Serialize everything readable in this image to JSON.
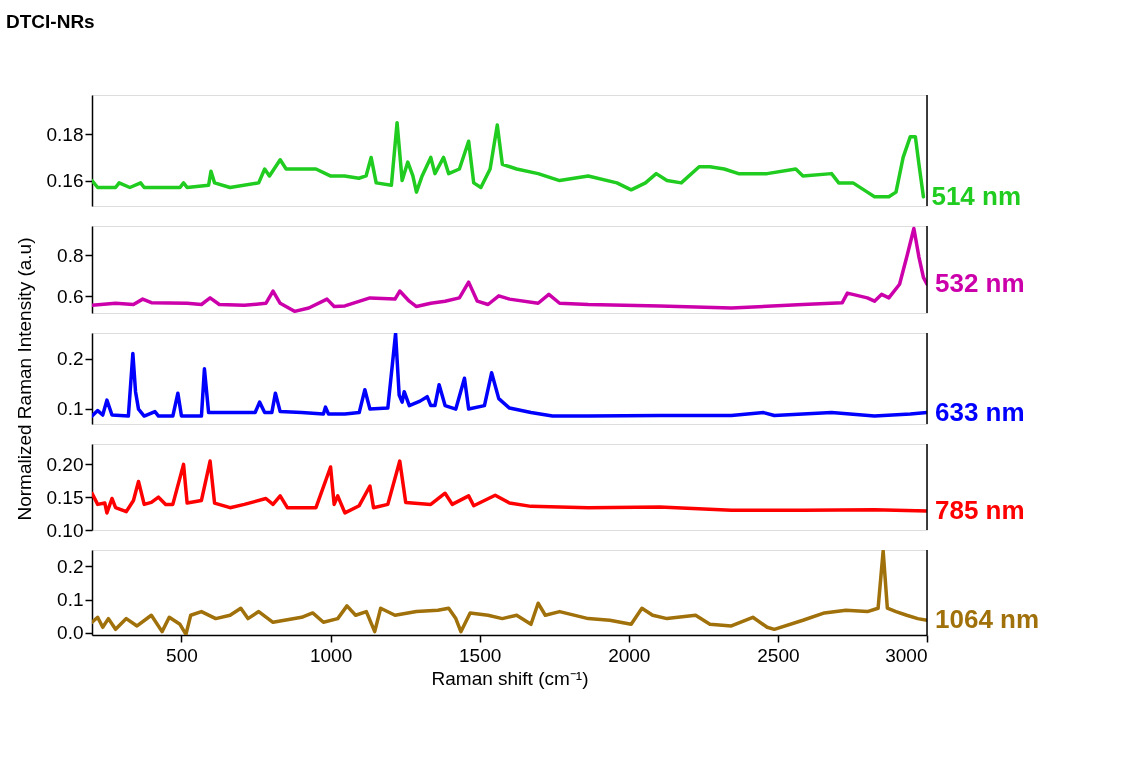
{
  "chart_data": [
    {
      "type": "line",
      "title": "DTCI-NRs",
      "xlim": [
        200,
        3000
      ],
      "ylim": [
        0.149,
        0.197
      ],
      "yticks": [
        0.16,
        0.18
      ],
      "tick_labels": "y",
      "grid": false,
      "series": [
        {
          "name": "514 nm",
          "color": "#1fcc1f",
          "x": [
            200,
            219,
            279,
            291,
            327,
            363,
            375,
            495,
            507,
            519,
            591,
            599,
            611,
            663,
            759,
            779,
            795,
            831,
            851,
            951,
            999,
            1047,
            1095,
            1119,
            1136,
            1153,
            1204,
            1223,
            1240,
            1259,
            1276,
            1288,
            1307,
            1336,
            1350,
            1379,
            1396,
            1432,
            1463,
            1480,
            1504,
            1535,
            1559,
            1576,
            1624,
            1696,
            1768,
            1864,
            1960,
            2008,
            2056,
            2092,
            2128,
            2176,
            2236,
            2272,
            2320,
            2368,
            2464,
            2560,
            2584,
            2680,
            2704,
            2752,
            2800,
            2824,
            2848,
            2872,
            2896,
            2920,
            2944,
            2961,
            2973,
            2988
          ],
          "values": [
            0.16,
            0.157,
            0.157,
            0.159,
            0.157,
            0.159,
            0.157,
            0.157,
            0.159,
            0.157,
            0.158,
            0.164,
            0.159,
            0.157,
            0.159,
            0.165,
            0.162,
            0.169,
            0.165,
            0.165,
            0.162,
            0.162,
            0.161,
            0.162,
            0.17,
            0.159,
            0.158,
            0.185,
            0.16,
            0.168,
            0.162,
            0.155,
            0.162,
            0.17,
            0.163,
            0.17,
            0.163,
            0.165,
            0.177,
            0.159,
            0.157,
            0.165,
            0.184,
            0.167,
            0.165,
            0.163,
            0.16,
            0.162,
            0.159,
            0.156,
            0.159,
            0.163,
            0.16,
            0.159,
            0.166,
            0.166,
            0.165,
            0.163,
            0.163,
            0.165,
            0.162,
            0.163,
            0.159,
            0.159,
            0.155,
            0.153,
            0.153,
            0.153,
            0.155,
            0.17,
            0.179,
            0.179,
            0.167,
            0.153
          ]
        }
      ]
    },
    {
      "type": "line",
      "xlim": [
        200,
        3000
      ],
      "ylim": [
        0.52,
        0.94
      ],
      "yticks": [
        0.6,
        0.8
      ],
      "tick_labels": "y",
      "grid": false,
      "series": [
        {
          "name": "532 nm",
          "color": "#cc00aa",
          "x": [
            200,
            279,
            339,
            370,
            399,
            519,
            567,
            596,
            627,
            711,
            783,
            807,
            831,
            879,
            927,
            988,
            1012,
            1048,
            1132,
            1216,
            1232,
            1264,
            1288,
            1336,
            1384,
            1432,
            1463,
            1492,
            1528,
            1564,
            1600,
            1696,
            1732,
            1768,
            1864,
            2104,
            2344,
            2584,
            2716,
            2733,
            2800,
            2824,
            2848,
            2872,
            2908,
            2932,
            2956,
            2973,
            2988,
            3000
          ],
          "values": [
            0.557,
            0.567,
            0.561,
            0.587,
            0.57,
            0.567,
            0.561,
            0.593,
            0.561,
            0.557,
            0.567,
            0.626,
            0.567,
            0.528,
            0.544,
            0.587,
            0.551,
            0.554,
            0.593,
            0.587,
            0.626,
            0.577,
            0.551,
            0.567,
            0.577,
            0.593,
            0.669,
            0.577,
            0.561,
            0.603,
            0.587,
            0.567,
            0.61,
            0.567,
            0.561,
            0.554,
            0.544,
            0.561,
            0.57,
            0.616,
            0.593,
            0.577,
            0.61,
            0.593,
            0.659,
            0.79,
            0.928,
            0.79,
            0.692,
            0.659
          ]
        }
      ]
    },
    {
      "type": "line",
      "xlim": [
        200,
        3000
      ],
      "ylim": [
        0.069,
        0.252
      ],
      "yticks": [
        0.1,
        0.2
      ],
      "tick_labels": "y",
      "grid": false,
      "ylabel": "Normalized Raman Intensity (a.u)",
      "series": [
        {
          "name": "633 nm",
          "color": "#0000ff",
          "x": [
            200,
            219,
            236,
            250,
            267,
            322,
            337,
            346,
            356,
            375,
            411,
            423,
            471,
            488,
            500,
            567,
            577,
            591,
            663,
            747,
            762,
            779,
            803,
            815,
            831,
            903,
            976,
            983,
            993,
            1048,
            1096,
            1115,
            1132,
            1192,
            1218,
            1230,
            1240,
            1247,
            1264,
            1300,
            1324,
            1336,
            1350,
            1364,
            1384,
            1420,
            1449,
            1463,
            1516,
            1540,
            1564,
            1600,
            1672,
            1744,
            1864,
            2104,
            2344,
            2452,
            2488,
            2680,
            2824,
            2944,
            3000
          ],
          "values": [
            0.085,
            0.096,
            0.087,
            0.117,
            0.087,
            0.085,
            0.211,
            0.134,
            0.099,
            0.085,
            0.094,
            0.085,
            0.085,
            0.131,
            0.085,
            0.085,
            0.18,
            0.092,
            0.092,
            0.092,
            0.113,
            0.092,
            0.092,
            0.131,
            0.094,
            0.092,
            0.089,
            0.103,
            0.089,
            0.089,
            0.092,
            0.138,
            0.099,
            0.101,
            0.251,
            0.127,
            0.113,
            0.134,
            0.106,
            0.115,
            0.124,
            0.106,
            0.106,
            0.148,
            0.106,
            0.099,
            0.161,
            0.099,
            0.106,
            0.172,
            0.12,
            0.101,
            0.092,
            0.085,
            0.085,
            0.086,
            0.086,
            0.092,
            0.086,
            0.092,
            0.085,
            0.089,
            0.092
          ]
        }
      ]
    },
    {
      "type": "line",
      "xlim": [
        200,
        3000
      ],
      "ylim": [
        0.1,
        0.231
      ],
      "yticks": [
        {
          "value": 0.1,
          "label": "0.10"
        },
        {
          "value": 0.15,
          "label": "0.15"
        },
        {
          "value": 0.2,
          "label": "0.20"
        }
      ],
      "tick_labels": "y",
      "grid": false,
      "series": [
        {
          "name": "785 nm",
          "color": "#ff0000",
          "x": [
            200,
            219,
            243,
            250,
            267,
            279,
            315,
            339,
            356,
            375,
            399,
            423,
            447,
            471,
            507,
            519,
            567,
            596,
            611,
            663,
            711,
            783,
            807,
            831,
            855,
            951,
            1000,
            1012,
            1024,
            1048,
            1096,
            1132,
            1144,
            1192,
            1232,
            1252,
            1336,
            1384,
            1408,
            1463,
            1480,
            1552,
            1600,
            1672,
            1864,
            2104,
            2344,
            2584,
            2824,
            3000
          ],
          "values": [
            0.156,
            0.139,
            0.141,
            0.126,
            0.148,
            0.134,
            0.128,
            0.145,
            0.174,
            0.139,
            0.142,
            0.15,
            0.139,
            0.139,
            0.2,
            0.141,
            0.145,
            0.205,
            0.141,
            0.134,
            0.139,
            0.148,
            0.139,
            0.152,
            0.134,
            0.134,
            0.196,
            0.139,
            0.152,
            0.126,
            0.137,
            0.167,
            0.134,
            0.139,
            0.205,
            0.142,
            0.139,
            0.156,
            0.139,
            0.152,
            0.137,
            0.153,
            0.141,
            0.136,
            0.134,
            0.135,
            0.13,
            0.13,
            0.131,
            0.129
          ]
        }
      ]
    },
    {
      "type": "line",
      "xlim": [
        200,
        3000
      ],
      "ylim": [
        -0.006,
        0.248
      ],
      "yticks": [
        {
          "value": 0,
          "label": "0.0"
        },
        0.1,
        0.2
      ],
      "xticks": [
        500,
        1000,
        1500,
        2000,
        2500,
        3000
      ],
      "xlabel": "Raman shift (cm⁻¹)",
      "grid": false,
      "series": [
        {
          "name": "1064 nm",
          "color": "#a0700a",
          "x": [
            200,
            219,
            236,
            255,
            279,
            315,
            351,
            399,
            435,
            459,
            495,
            515,
            531,
            567,
            615,
            663,
            699,
            723,
            759,
            807,
            903,
            940,
            976,
            1024,
            1055,
            1084,
            1120,
            1148,
            1168,
            1216,
            1288,
            1360,
            1396,
            1420,
            1437,
            1468,
            1528,
            1576,
            1624,
            1672,
            1696,
            1720,
            1768,
            1864,
            1936,
            2008,
            2044,
            2080,
            2128,
            2224,
            2272,
            2344,
            2416,
            2464,
            2488,
            2584,
            2656,
            2728,
            2800,
            2836,
            2853,
            2867,
            2896,
            2932,
            2969,
            3000
          ],
          "values": [
            0.032,
            0.047,
            0.017,
            0.043,
            0.011,
            0.043,
            0.021,
            0.053,
            0.004,
            0.047,
            0.026,
            -0.004,
            0.053,
            0.064,
            0.043,
            0.053,
            0.074,
            0.043,
            0.064,
            0.032,
            0.047,
            0.06,
            0.032,
            0.043,
            0.081,
            0.053,
            0.064,
            0.004,
            0.074,
            0.053,
            0.064,
            0.068,
            0.074,
            0.043,
            0.004,
            0.06,
            0.053,
            0.043,
            0.053,
            0.026,
            0.089,
            0.053,
            0.064,
            0.043,
            0.038,
            0.026,
            0.074,
            0.053,
            0.043,
            0.053,
            0.026,
            0.021,
            0.047,
            0.017,
            0.011,
            0.038,
            0.06,
            0.068,
            0.064,
            0.074,
            0.245,
            0.074,
            0.064,
            0.053,
            0.043,
            0.038
          ]
        }
      ]
    }
  ]
}
